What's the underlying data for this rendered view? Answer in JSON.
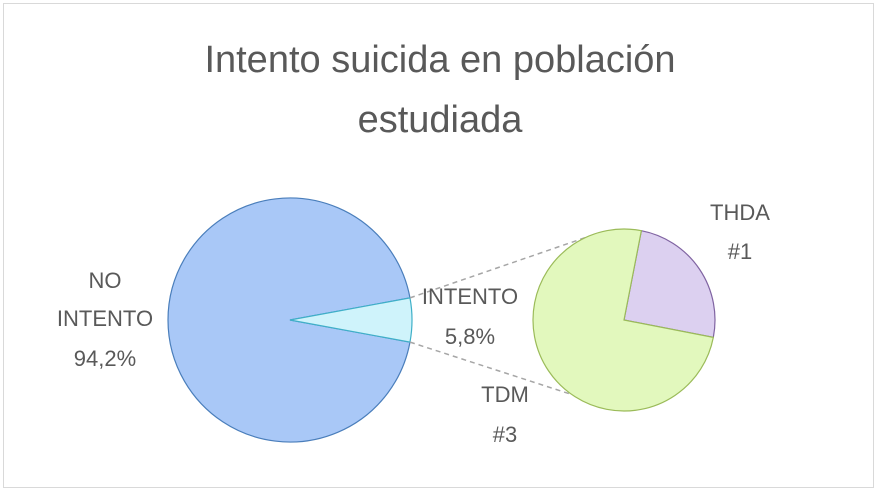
{
  "chart_data": {
    "type": "pie-of-pie",
    "title": "Intento suicida en población estudiada",
    "categories": [
      "NO INTENTO",
      "INTENTO"
    ],
    "values": [
      94.2,
      5.8
    ],
    "value_labels": [
      "94,2%",
      "5,8%"
    ],
    "colors": [
      "#a9c8f7",
      "#cff3fb"
    ],
    "secondary": {
      "categories": [
        "THDA",
        "TDM"
      ],
      "values": [
        1,
        3
      ],
      "value_labels": [
        "#1",
        "#3"
      ],
      "colors": [
        "#dcd0f0",
        "#e2f8bd"
      ]
    }
  }
}
